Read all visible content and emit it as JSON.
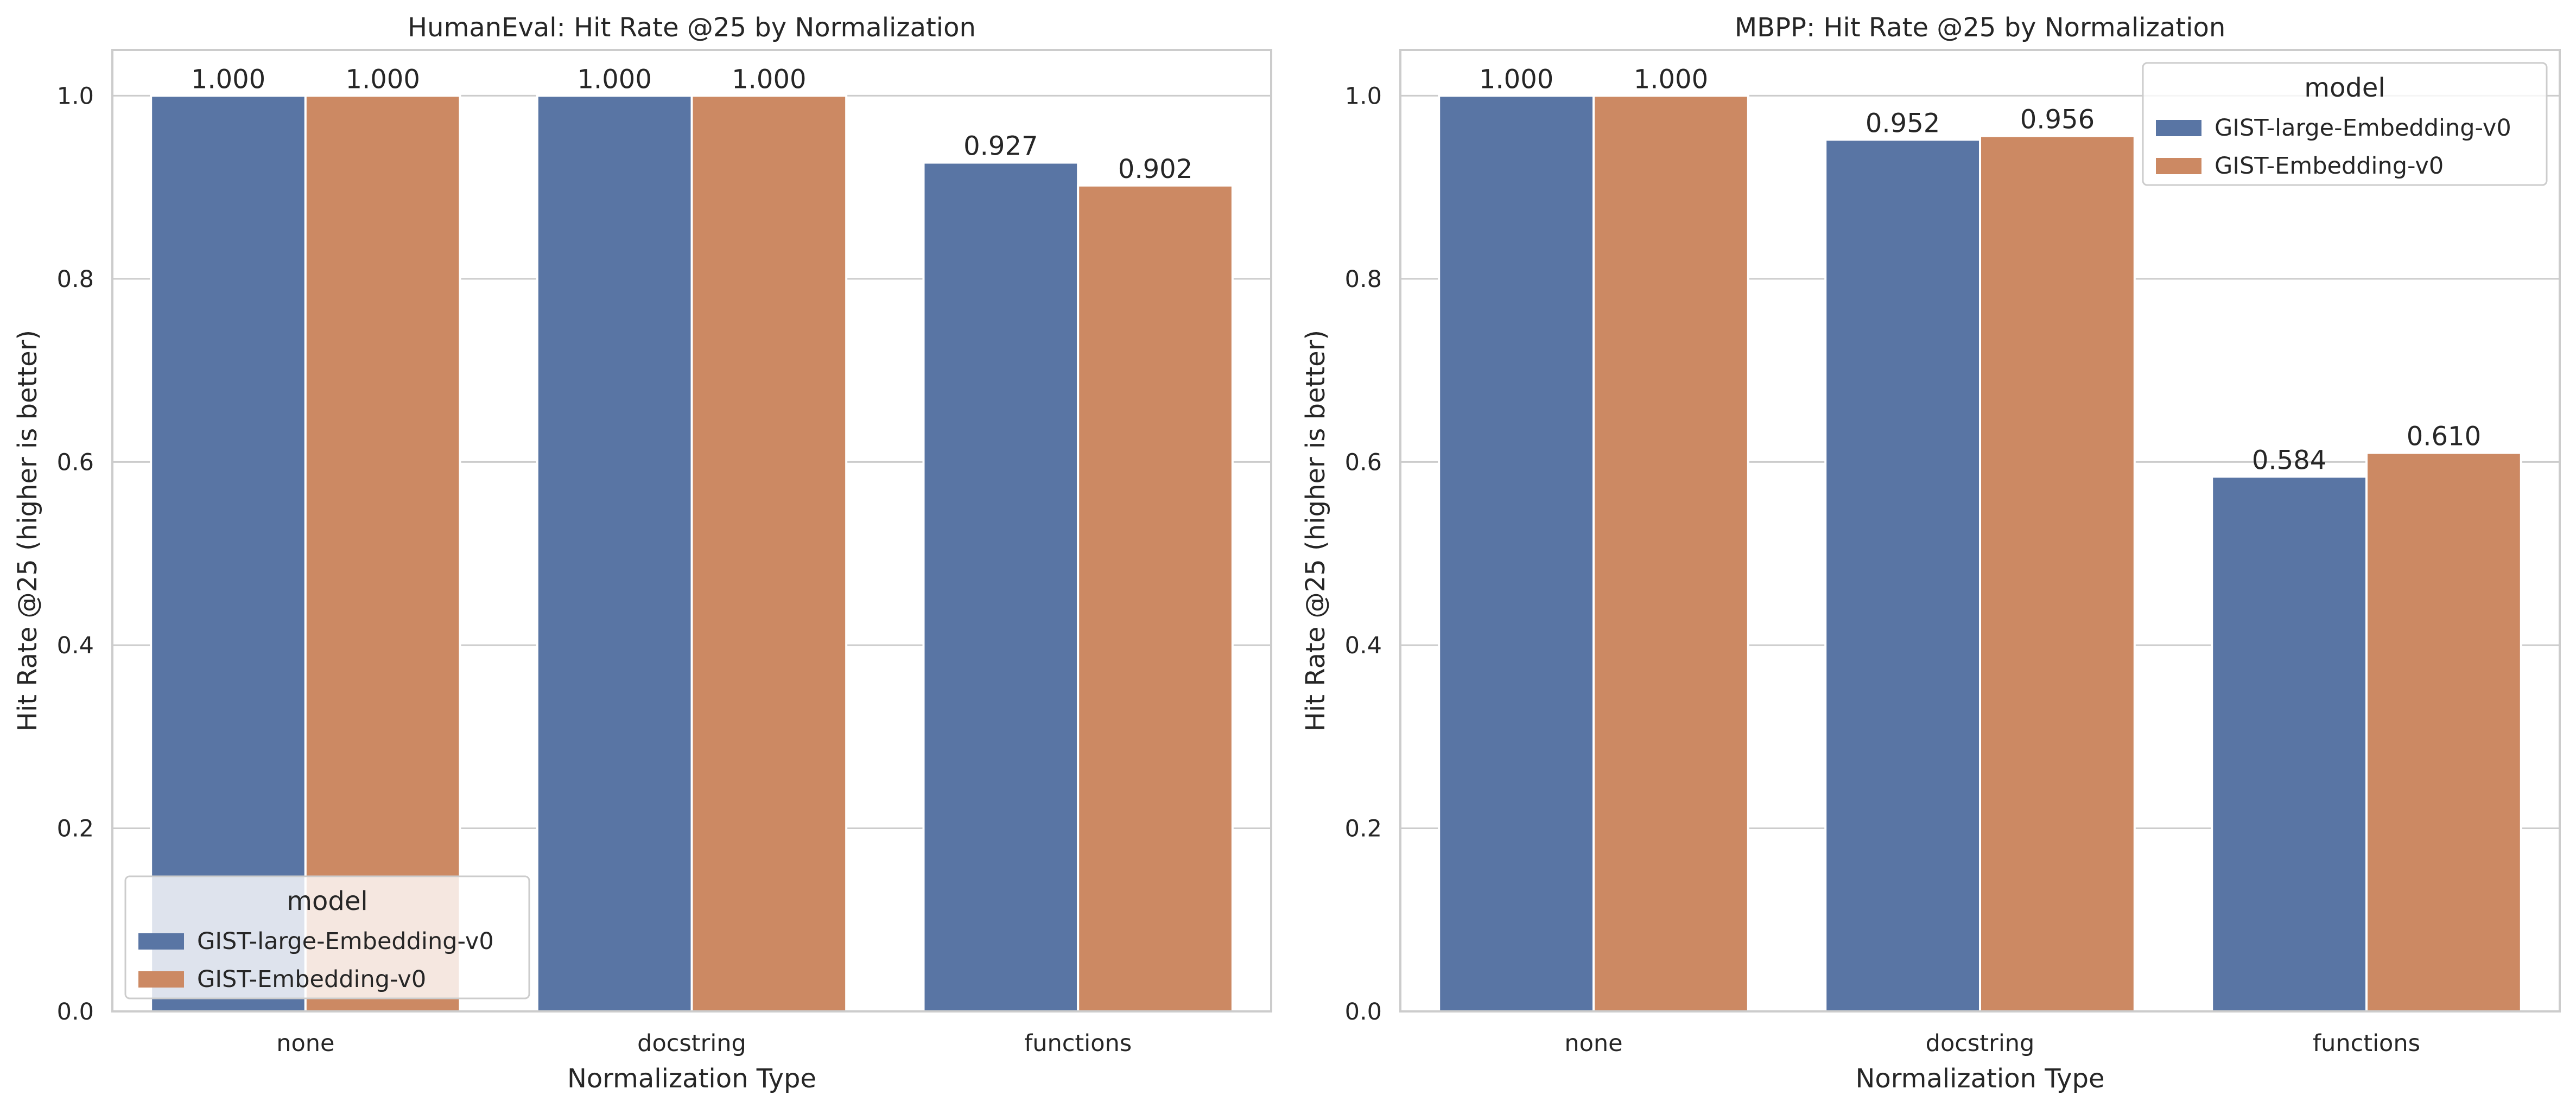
{
  "chart_data": [
    {
      "type": "bar",
      "title": "HumanEval: Hit Rate @25 by Normalization",
      "xlabel": "Normalization Type",
      "ylabel": "Hit Rate @25 (higher is better)",
      "categories": [
        "none",
        "docstring",
        "functions"
      ],
      "series": [
        {
          "name": "GIST-large-Embedding-v0",
          "values": [
            1.0,
            1.0,
            0.927
          ],
          "labels": [
            "1.000",
            "1.000",
            "0.927"
          ]
        },
        {
          "name": "GIST-Embedding-v0",
          "values": [
            1.0,
            1.0,
            0.902
          ],
          "labels": [
            "1.000",
            "1.000",
            "0.902"
          ]
        }
      ],
      "ylim": [
        0,
        1.05
      ],
      "yticks": [
        0.0,
        0.2,
        0.4,
        0.6,
        0.8,
        1.0
      ],
      "ytick_labels": [
        "0.0",
        "0.2",
        "0.4",
        "0.6",
        "0.8",
        "1.0"
      ],
      "grid": "horizontal",
      "legend": {
        "title": "model",
        "placement": "lower-left"
      }
    },
    {
      "type": "bar",
      "title": "MBPP: Hit Rate @25 by Normalization",
      "xlabel": "Normalization Type",
      "ylabel": "Hit Rate @25 (higher is better)",
      "categories": [
        "none",
        "docstring",
        "functions"
      ],
      "series": [
        {
          "name": "GIST-large-Embedding-v0",
          "values": [
            1.0,
            0.952,
            0.584
          ],
          "labels": [
            "1.000",
            "0.952",
            "0.584"
          ]
        },
        {
          "name": "GIST-Embedding-v0",
          "values": [
            1.0,
            0.956,
            0.61
          ],
          "labels": [
            "1.000",
            "0.956",
            "0.610"
          ]
        }
      ],
      "ylim": [
        0,
        1.05
      ],
      "yticks": [
        0.0,
        0.2,
        0.4,
        0.6,
        0.8,
        1.0
      ],
      "ytick_labels": [
        "0.0",
        "0.2",
        "0.4",
        "0.6",
        "0.8",
        "1.0"
      ],
      "grid": "horizontal",
      "legend": {
        "title": "model",
        "placement": "upper-right"
      }
    }
  ],
  "colors": {
    "series": [
      "#5975a4",
      "#cc8963"
    ],
    "grid": "#cccccc",
    "frame": "#cccccc",
    "text": "#262626"
  }
}
